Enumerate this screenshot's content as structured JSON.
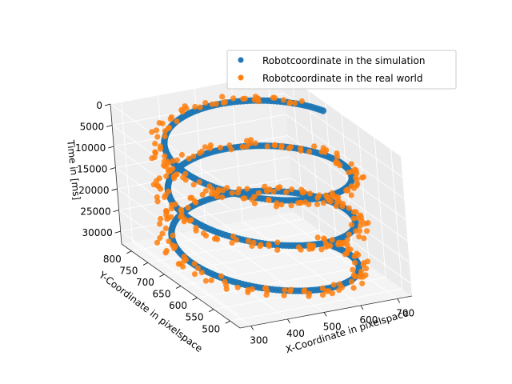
{
  "chart_data": {
    "type": "scatter",
    "projection": "3d",
    "grid": true,
    "legend_position": "top-right",
    "xlabel": "X-Coordinate in pixelspace",
    "ylabel": "Y-Coordinate in pixelspace",
    "zlabel": "Time in [ms]",
    "x_ticks": [
      "300",
      "400",
      "500",
      "600",
      "700"
    ],
    "y_ticks": [
      "500",
      "550",
      "600",
      "650",
      "700",
      "750",
      "800"
    ],
    "z_ticks": [
      "0",
      "5000",
      "10000",
      "15000",
      "20000",
      "25000",
      "30000"
    ],
    "xlim": [
      270,
      740
    ],
    "ylim": [
      470,
      830
    ],
    "zlim": [
      0,
      33000
    ],
    "series": [
      {
        "name": "Robotcoordinate in the simulation",
        "color": "#1f77b4",
        "shape": "helix",
        "x_center": 505,
        "x_amplitude": 215,
        "y_center": 650,
        "y_amplitude": 150,
        "z_range": [
          500,
          32500
        ],
        "turns": 3
      },
      {
        "name": "Robotcoordinate in the real world",
        "color": "#ff7f0e",
        "shape": "helix-noisy",
        "x_center": 500,
        "x_amplitude": 230,
        "y_center": 650,
        "y_amplitude": 160,
        "z_range": [
          1000,
          33000
        ],
        "turns": 3
      }
    ]
  }
}
